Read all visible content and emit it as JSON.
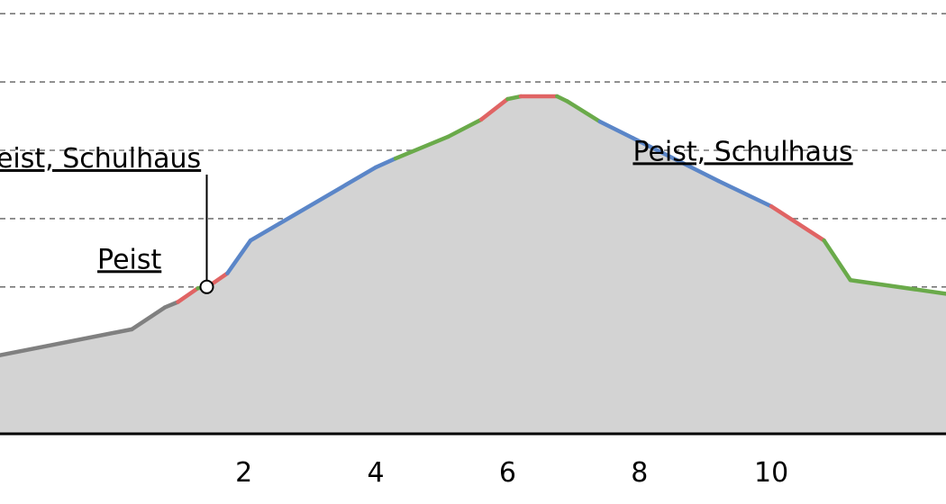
{
  "chart_data": {
    "type": "area",
    "xlim": [
      -1.7,
      12.65
    ],
    "ylim": [
      -0.15,
      6.2
    ],
    "x_ticks": [
      2,
      4,
      6,
      8,
      10
    ],
    "grid": {
      "horizontal": true,
      "vertical": true,
      "style": "dashed"
    },
    "grid_y": [
      0,
      1,
      2,
      3,
      4,
      5,
      6
    ],
    "colors": {
      "fill": "#d3d3d3",
      "default": "#808080",
      "flat": "#6aaa4a",
      "moderate": "#5b86c8",
      "steep": "#e06464"
    },
    "profile": [
      {
        "x": -1.7,
        "y": 1.0,
        "c": "default"
      },
      {
        "x": 0.3,
        "y": 1.38,
        "c": "default"
      },
      {
        "x": 0.8,
        "y": 1.7,
        "c": "default"
      },
      {
        "x": 1.0,
        "y": 1.78,
        "c": "default"
      },
      {
        "x": 1.3,
        "y": 1.98,
        "c": "steep"
      },
      {
        "x": 1.45,
        "y": 2.0,
        "c": "flat"
      },
      {
        "x": 1.75,
        "y": 2.2,
        "c": "steep"
      },
      {
        "x": 2.1,
        "y": 2.68,
        "c": "moderate"
      },
      {
        "x": 4.0,
        "y": 3.75,
        "c": "moderate"
      },
      {
        "x": 4.3,
        "y": 3.88,
        "c": "moderate"
      },
      {
        "x": 5.1,
        "y": 4.2,
        "c": "flat"
      },
      {
        "x": 5.6,
        "y": 4.45,
        "c": "flat"
      },
      {
        "x": 6.0,
        "y": 4.75,
        "c": "steep"
      },
      {
        "x": 6.2,
        "y": 4.79,
        "c": "flat"
      },
      {
        "x": 6.75,
        "y": 4.79,
        "c": "steep"
      },
      {
        "x": 6.9,
        "y": 4.72,
        "c": "flat"
      },
      {
        "x": 7.4,
        "y": 4.42,
        "c": "flat"
      },
      {
        "x": 7.9,
        "y": 4.18,
        "c": "moderate"
      },
      {
        "x": 9.2,
        "y": 3.55,
        "c": "moderate"
      },
      {
        "x": 10.0,
        "y": 3.18,
        "c": "moderate"
      },
      {
        "x": 10.8,
        "y": 2.68,
        "c": "steep"
      },
      {
        "x": 11.2,
        "y": 2.1,
        "c": "flat"
      },
      {
        "x": 12.65,
        "y": 1.9,
        "c": "flat"
      }
    ],
    "annotations": [
      {
        "text": "Peist, Schulhaus",
        "x": 1.45,
        "y": 2.0,
        "label_x": 1.35,
        "label_y": 3.75,
        "anchor": "end",
        "marker": true
      },
      {
        "text": "Peist",
        "x": 0.7,
        "y": 1.7,
        "label_x": 0.75,
        "label_y": 2.27,
        "anchor": "end",
        "marker": false
      },
      {
        "text": "Peist, Schulhaus",
        "x": 11.05,
        "y": 2.4,
        "label_x": 7.9,
        "label_y": 3.85,
        "anchor": "start",
        "marker": false
      }
    ]
  }
}
